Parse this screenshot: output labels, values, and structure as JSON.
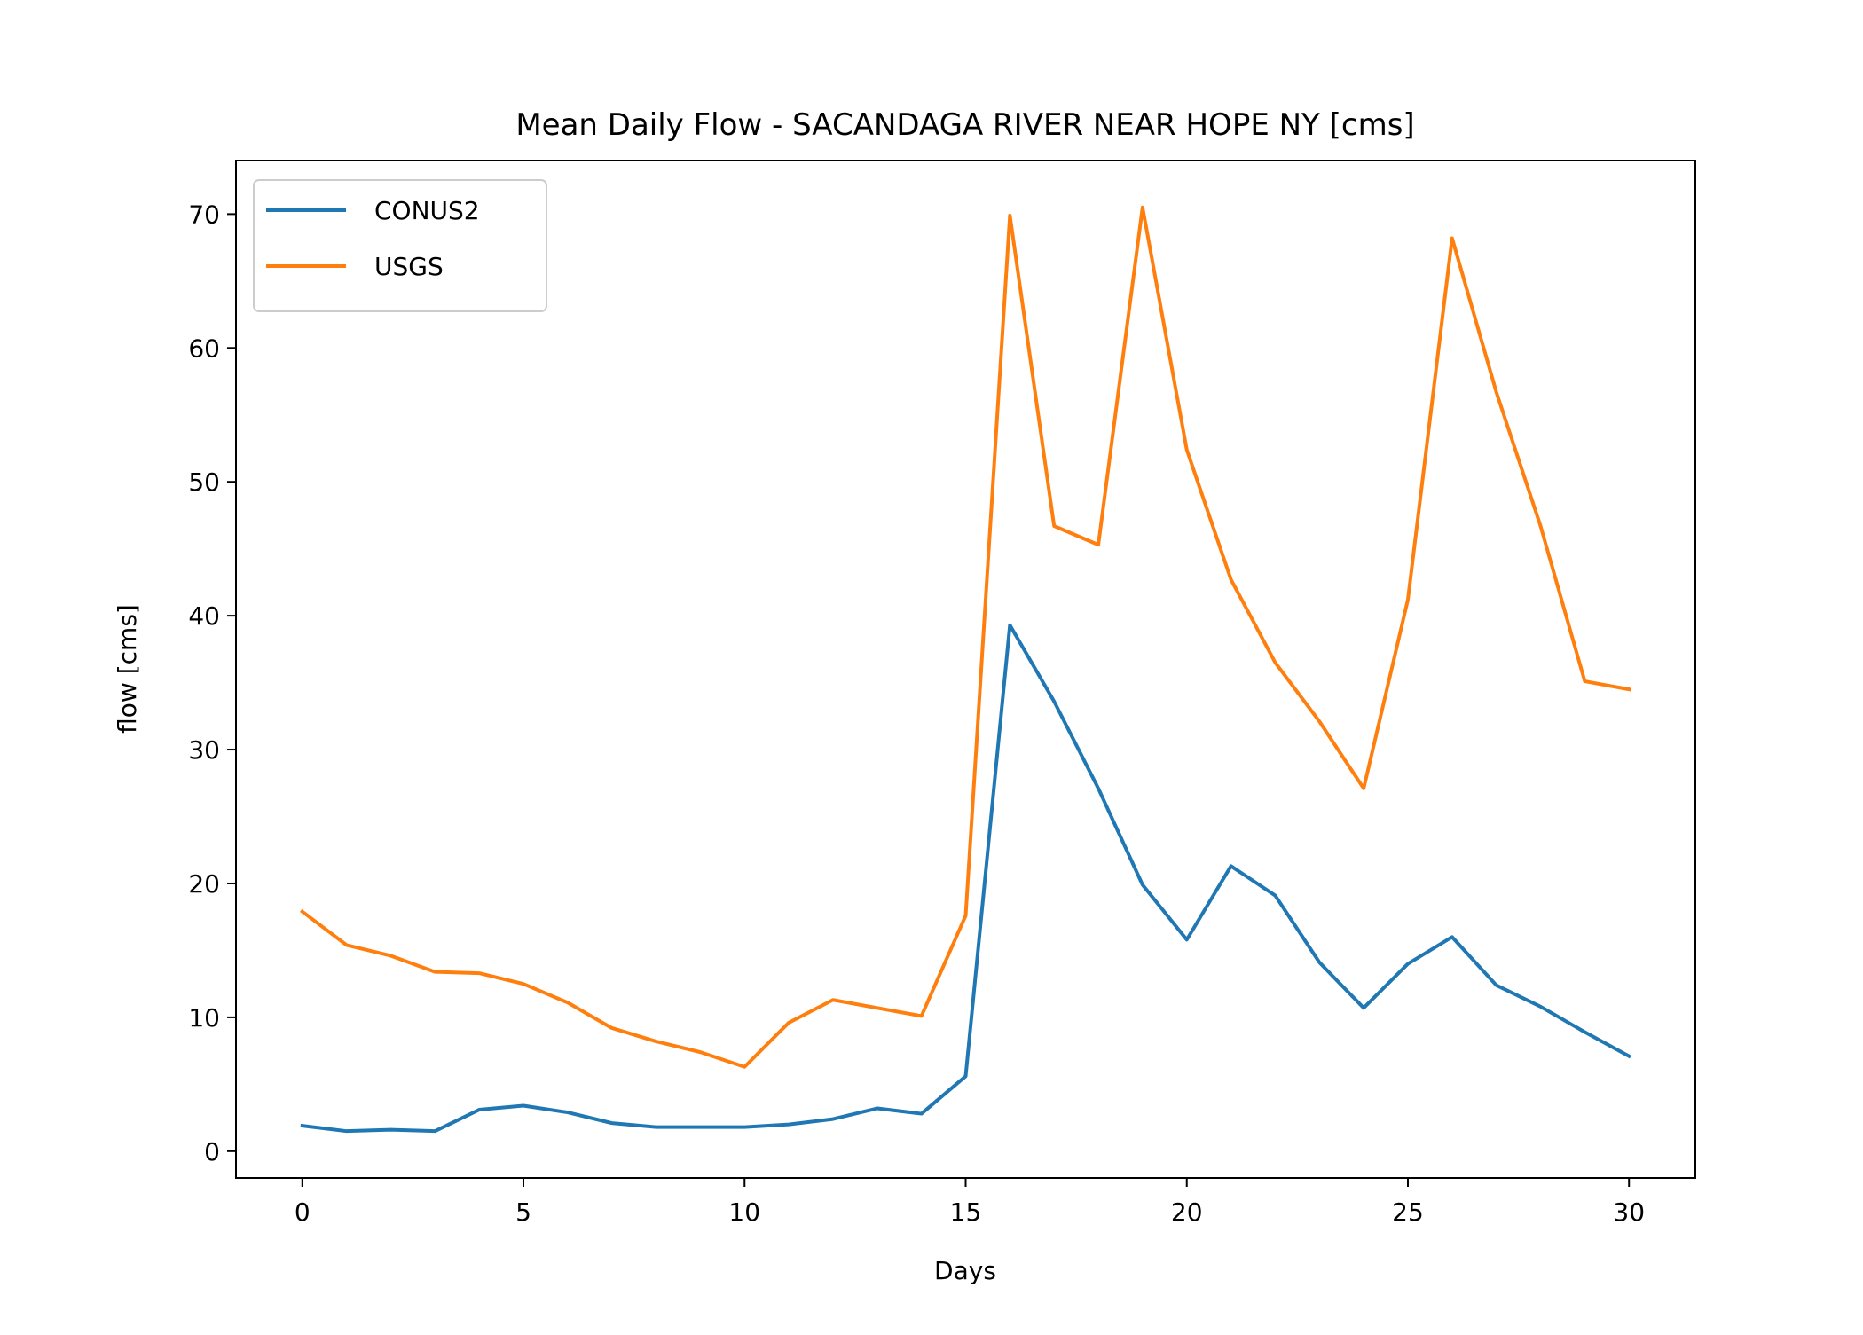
{
  "chart_data": {
    "type": "line",
    "title": "Mean Daily Flow - SACANDAGA RIVER NEAR HOPE NY [cms]",
    "xlabel": "Days",
    "ylabel": "flow [cms]",
    "xlim": [
      -1.5,
      31.5
    ],
    "ylim": [
      -2.0,
      74.0
    ],
    "xticks": [
      0,
      5,
      10,
      15,
      20,
      25,
      30
    ],
    "yticks": [
      0,
      10,
      20,
      30,
      40,
      50,
      60,
      70
    ],
    "x": [
      0,
      1,
      2,
      3,
      4,
      5,
      6,
      7,
      8,
      9,
      10,
      11,
      12,
      13,
      14,
      15,
      16,
      17,
      18,
      19,
      20,
      21,
      22,
      23,
      24,
      25,
      26,
      27,
      28,
      29,
      30
    ],
    "series": [
      {
        "name": "CONUS2",
        "color": "#1f77b4",
        "values": [
          1.9,
          1.5,
          1.6,
          1.5,
          3.1,
          3.4,
          2.9,
          2.1,
          1.8,
          1.8,
          1.8,
          2.0,
          2.4,
          3.2,
          2.8,
          5.6,
          39.3,
          33.6,
          27.1,
          19.9,
          15.8,
          21.3,
          19.1,
          14.1,
          10.7,
          14.0,
          16.0,
          12.4,
          10.8,
          8.9,
          7.1
        ]
      },
      {
        "name": "USGS",
        "color": "#ff7f0e",
        "values": [
          17.9,
          15.4,
          14.6,
          13.4,
          13.3,
          12.5,
          11.1,
          9.2,
          8.2,
          7.4,
          6.3,
          9.6,
          11.3,
          10.7,
          10.1,
          17.6,
          69.9,
          46.7,
          45.3,
          70.5,
          52.4,
          42.7,
          36.5,
          32.1,
          27.1,
          41.2,
          68.2,
          56.7,
          46.7,
          35.1,
          34.5
        ]
      }
    ],
    "legend_position": "upper-left",
    "grid": false
  }
}
